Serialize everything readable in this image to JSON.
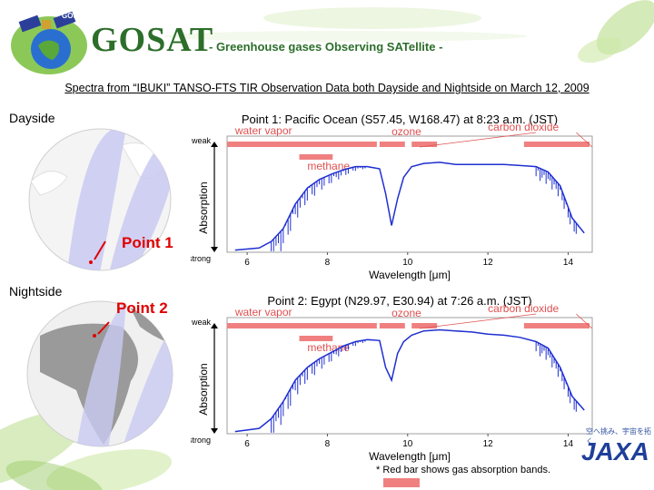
{
  "header": {
    "logo_text": "GOSAT",
    "title": "GOSAT",
    "title_sub": "- Greenhouse gases Observing SATellite -"
  },
  "subtitle": "Spectra from “IBUKI” TANSO-FTS TIR Observation Data both Dayside and Nightside   on March 12, 2009",
  "globes": {
    "dayside_label": "Dayside",
    "nightside_label": "Nightside",
    "point1_label": "Point 1",
    "point2_label": "Point 2"
  },
  "footnote": "* Red bar shows gas absorption bands.",
  "jaxa": {
    "logo": "JAXA",
    "tagline": "空へ挑み、宇宙を拓く"
  },
  "colors": {
    "spectrum": "#1f2fd0",
    "band": "#f08080",
    "gas_label": "#e05050",
    "title_green": "#2c6e2a",
    "point_red": "#e00000"
  },
  "chart_data": [
    {
      "type": "line",
      "title": "Point 1: Pacific Ocean (S57.45, W168.47) at 8:23 a.m. (JST)",
      "xlabel": "Wavelength [μm]",
      "ylabel": "Absorption",
      "y_top_label": "weak",
      "y_bottom_label": "strong",
      "xlim": [
        5.5,
        14.6
      ],
      "xticks": [
        6,
        8,
        10,
        12,
        14
      ],
      "ylim": [
        0,
        1
      ],
      "x": [
        5.7,
        6.3,
        6.6,
        6.9,
        7.2,
        7.5,
        7.8,
        8.1,
        8.4,
        8.7,
        9.0,
        9.3,
        9.45,
        9.6,
        9.75,
        9.9,
        10.1,
        10.4,
        10.8,
        11.2,
        11.6,
        12.0,
        12.4,
        12.8,
        13.2,
        13.5,
        13.8,
        14.1,
        14.4
      ],
      "y": [
        0.02,
        0.04,
        0.1,
        0.22,
        0.45,
        0.6,
        0.68,
        0.73,
        0.77,
        0.8,
        0.8,
        0.78,
        0.55,
        0.25,
        0.5,
        0.7,
        0.8,
        0.83,
        0.84,
        0.82,
        0.82,
        0.82,
        0.82,
        0.81,
        0.8,
        0.75,
        0.62,
        0.32,
        0.18
      ],
      "bands": [
        {
          "gas": "water vapor",
          "range": [
            5.5,
            9.3
          ],
          "row": 1
        },
        {
          "gas": "methane",
          "range": [
            7.3,
            8.2
          ],
          "row": 2
        },
        {
          "gas": "ozone",
          "range": [
            9.3,
            10.0
          ],
          "row": 1
        },
        {
          "gas": "ozone",
          "range": [
            10.1,
            10.8
          ],
          "row": 1
        },
        {
          "gas": "carbon dioxide",
          "range": [
            12.9,
            14.6
          ],
          "row": 1
        }
      ],
      "band_labels": [
        "water vapor",
        "ozone",
        "methane",
        "carbon dioxide"
      ]
    },
    {
      "type": "line",
      "title": "Point 2: Egypt (N29.97, E30.94) at 7:26 a.m. (JST)",
      "xlabel": "Wavelength [μm]",
      "ylabel": "Absorption",
      "y_top_label": "weak",
      "y_bottom_label": "strong",
      "xlim": [
        5.5,
        14.6
      ],
      "xticks": [
        6,
        8,
        10,
        12,
        14
      ],
      "ylim": [
        0,
        1
      ],
      "x": [
        5.7,
        6.3,
        6.6,
        6.9,
        7.2,
        7.5,
        7.8,
        8.1,
        8.4,
        8.7,
        9.0,
        9.3,
        9.45,
        9.6,
        9.75,
        9.9,
        10.1,
        10.4,
        10.8,
        11.2,
        11.6,
        12.0,
        12.4,
        12.8,
        13.2,
        13.5,
        13.8,
        14.1,
        14.4
      ],
      "y": [
        0.02,
        0.05,
        0.14,
        0.3,
        0.5,
        0.62,
        0.7,
        0.76,
        0.82,
        0.86,
        0.88,
        0.87,
        0.62,
        0.5,
        0.75,
        0.86,
        0.92,
        0.96,
        0.97,
        0.96,
        0.95,
        0.93,
        0.92,
        0.9,
        0.86,
        0.8,
        0.62,
        0.35,
        0.22
      ],
      "bands": [
        {
          "gas": "water vapor",
          "range": [
            5.5,
            9.3
          ],
          "row": 1
        },
        {
          "gas": "methane",
          "range": [
            7.3,
            8.2
          ],
          "row": 2
        },
        {
          "gas": "ozone",
          "range": [
            9.3,
            10.0
          ],
          "row": 1
        },
        {
          "gas": "ozone",
          "range": [
            10.1,
            10.8
          ],
          "row": 1
        },
        {
          "gas": "carbon dioxide",
          "range": [
            12.9,
            14.6
          ],
          "row": 1
        }
      ],
      "band_labels": [
        "water vapor",
        "ozone",
        "methane",
        "carbon dioxide"
      ]
    }
  ]
}
